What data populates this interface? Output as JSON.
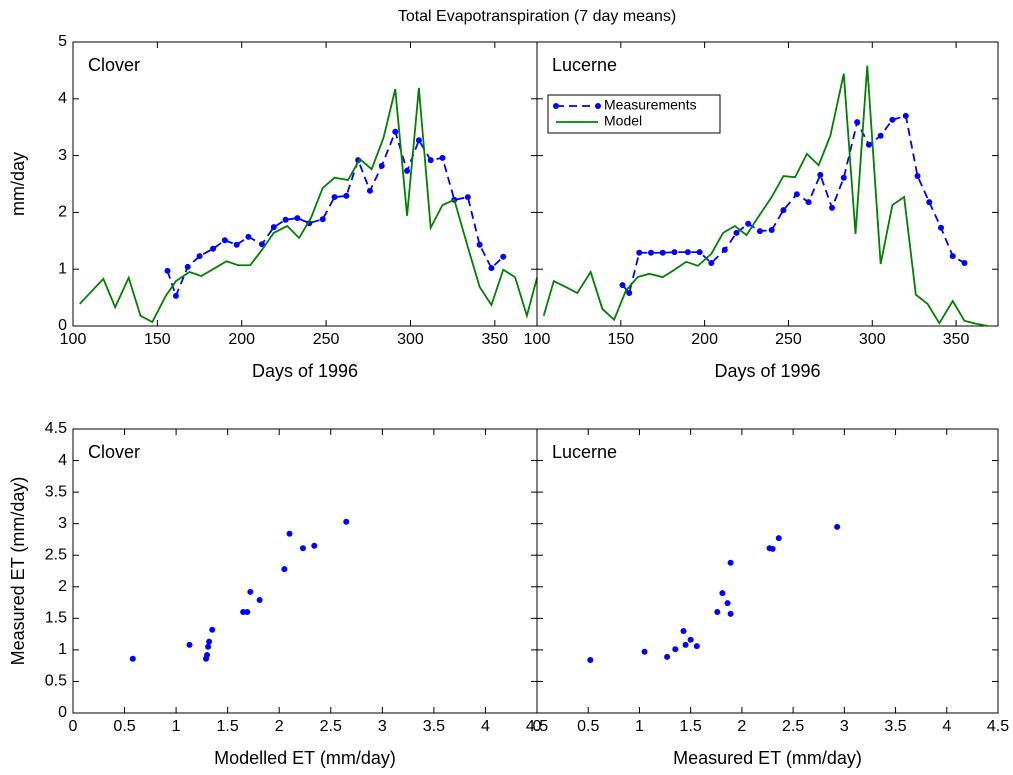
{
  "title": "Total Evapotranspiration (7 day means)",
  "chart_data": [
    {
      "type": "line",
      "annotation": "Clover",
      "xlabel": "Days of 1996",
      "ylabel": "mm/day",
      "xlim": [
        100,
        375
      ],
      "ylim": [
        0,
        5
      ],
      "xticks": [
        100,
        150,
        200,
        250,
        300,
        350
      ],
      "yticks": [
        0,
        1,
        2,
        3,
        4,
        5
      ],
      "ytick_labels": true,
      "series": [
        {
          "name": "Measurements",
          "color": "#0000ff",
          "dashed": true,
          "markers": true,
          "x": [
            156,
            161,
            168,
            175,
            183,
            190,
            197,
            204,
            212,
            219,
            226,
            233,
            240,
            248,
            255,
            262,
            269,
            276,
            283,
            291,
            298,
            305,
            312,
            319,
            326,
            334,
            341,
            348,
            355
          ],
          "values": [
            0.97,
            0.53,
            1.04,
            1.23,
            1.36,
            1.51,
            1.43,
            1.57,
            1.44,
            1.74,
            1.87,
            1.9,
            1.81,
            1.88,
            2.27,
            2.29,
            2.92,
            2.38,
            2.82,
            3.42,
            2.73,
            3.27,
            2.92,
            2.96,
            2.22,
            2.27,
            1.43,
            1.02,
            1.22
          ]
        },
        {
          "name": "Model",
          "color": "#008000",
          "dashed": false,
          "markers": false,
          "x": [
            104,
            110,
            118,
            125,
            133,
            140,
            147,
            155,
            161,
            169,
            176,
            183,
            191,
            198,
            205,
            212,
            219,
            227,
            234,
            241,
            248,
            255,
            263,
            270,
            277,
            284,
            291,
            298,
            305,
            312,
            319,
            326,
            334,
            341,
            348,
            355,
            362,
            369,
            375
          ],
          "values": [
            0.39,
            0.58,
            0.83,
            0.33,
            0.85,
            0.18,
            0.07,
            0.53,
            0.79,
            0.95,
            0.88,
            1.0,
            1.14,
            1.07,
            1.07,
            1.34,
            1.64,
            1.76,
            1.55,
            1.9,
            2.43,
            2.61,
            2.57,
            2.94,
            2.76,
            3.31,
            4.17,
            1.94,
            4.19,
            1.73,
            2.13,
            2.22,
            1.39,
            0.69,
            0.37,
            0.99,
            0.86,
            0.18,
            0.85
          ]
        }
      ]
    },
    {
      "type": "line",
      "annotation": "Lucerne",
      "xlabel": "Days of 1996",
      "legend": "upper left",
      "xlim": [
        100,
        375
      ],
      "ylim": [
        0,
        5
      ],
      "xticks": [
        100,
        150,
        200,
        250,
        300,
        350
      ],
      "yticks": [
        0,
        1,
        2,
        3,
        4,
        5
      ],
      "ytick_labels": false,
      "series": [
        {
          "name": "Measurements",
          "color": "#0000ff",
          "dashed": true,
          "markers": true,
          "x": [
            151,
            155,
            161,
            168,
            175,
            182,
            190,
            197,
            204,
            212,
            219,
            226,
            233,
            240,
            247,
            255,
            262,
            269,
            276,
            283,
            291,
            298,
            305,
            312,
            320,
            327,
            334,
            341,
            348,
            355
          ],
          "values": [
            0.72,
            0.58,
            1.29,
            1.29,
            1.29,
            1.3,
            1.3,
            1.3,
            1.11,
            1.34,
            1.64,
            1.8,
            1.67,
            1.69,
            2.04,
            2.32,
            2.18,
            2.66,
            2.08,
            2.61,
            3.59,
            3.19,
            3.35,
            3.63,
            3.7,
            2.64,
            2.18,
            1.73,
            1.23,
            1.11
          ]
        },
        {
          "name": "Model",
          "color": "#008000",
          "dashed": false,
          "markers": false,
          "x": [
            104,
            110,
            117,
            124,
            132,
            139,
            146,
            153,
            160,
            167,
            175,
            182,
            189,
            196,
            204,
            211,
            218,
            225,
            232,
            240,
            247,
            254,
            261,
            268,
            275,
            283,
            290,
            297,
            305,
            312,
            319,
            326,
            333,
            340,
            348,
            355,
            362,
            369
          ],
          "values": [
            0.18,
            0.79,
            0.69,
            0.58,
            0.95,
            0.3,
            0.11,
            0.62,
            0.86,
            0.92,
            0.86,
            0.99,
            1.13,
            1.06,
            1.27,
            1.64,
            1.76,
            1.6,
            1.92,
            2.27,
            2.64,
            2.62,
            3.03,
            2.83,
            3.35,
            4.44,
            1.62,
            4.58,
            1.09,
            2.13,
            2.27,
            0.55,
            0.39,
            0.05,
            0.44,
            0.09,
            0.04,
            0
          ]
        }
      ]
    },
    {
      "type": "scatter",
      "annotation": "Clover",
      "xlabel": "Modelled ET (mm/day)",
      "ylabel": "Measured ET (mm/day)",
      "xlim": [
        0,
        4.5
      ],
      "ylim": [
        0,
        4.5
      ],
      "xticks": [
        0,
        0.5,
        1,
        1.5,
        2,
        2.5,
        3,
        3.5,
        4,
        4.5
      ],
      "yticks": [
        0,
        0.5,
        1,
        1.5,
        2,
        2.5,
        3,
        3.5,
        4,
        4.5
      ],
      "ytick_labels": true,
      "color": "#0000ff",
      "x": [
        0.58,
        1.13,
        1.29,
        1.3,
        1.31,
        1.32,
        1.35,
        1.65,
        1.69,
        1.72,
        1.81,
        2.05,
        2.1,
        2.23,
        2.34,
        2.65
      ],
      "values": [
        0.86,
        1.08,
        0.86,
        0.92,
        1.05,
        1.13,
        1.32,
        1.6,
        1.6,
        1.92,
        1.79,
        2.28,
        2.84,
        2.61,
        2.65,
        3.03
      ]
    },
    {
      "type": "scatter",
      "annotation": "Lucerne",
      "xlabel": "Measured ET (mm/day)",
      "xlim": [
        0,
        4.5
      ],
      "ylim": [
        0,
        4.5
      ],
      "xticks": [
        0,
        0.5,
        1,
        1.5,
        2,
        2.5,
        3,
        3.5,
        4,
        4.5
      ],
      "yticks": [
        0,
        0.5,
        1,
        1.5,
        2,
        2.5,
        3,
        3.5,
        4,
        4.5
      ],
      "ytick_labels": false,
      "color": "#0000ff",
      "x": [
        0.52,
        1.05,
        1.27,
        1.35,
        1.45,
        1.43,
        1.5,
        1.56,
        1.76,
        1.81,
        1.86,
        1.89,
        1.89,
        2.27,
        2.3,
        2.36,
        2.93
      ],
      "values": [
        0.84,
        0.97,
        0.89,
        1.01,
        1.08,
        1.3,
        1.16,
        1.06,
        1.6,
        1.9,
        1.74,
        1.57,
        2.38,
        2.61,
        2.6,
        2.77,
        2.95
      ]
    }
  ]
}
